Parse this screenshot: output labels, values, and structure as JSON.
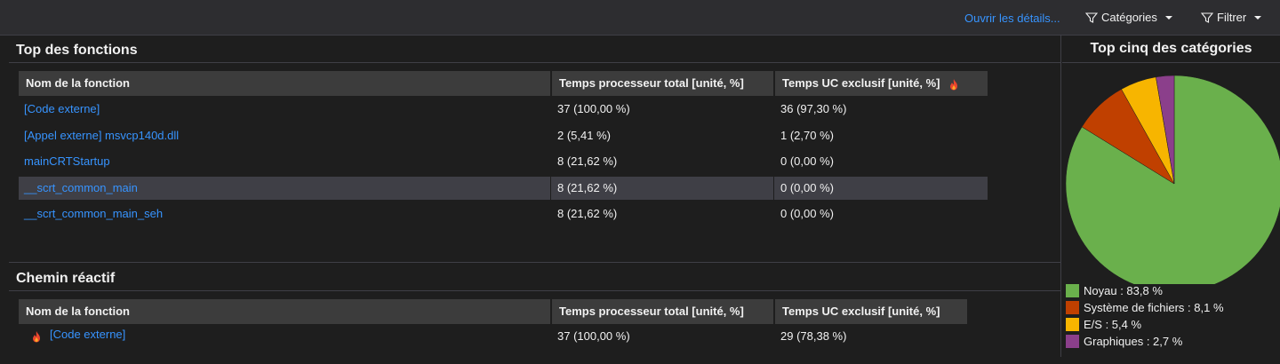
{
  "toolbar": {
    "open_details": "Ouvrir les détails...",
    "categories": "Catégories",
    "filter": "Filtrer"
  },
  "top_functions": {
    "title": "Top des fonctions",
    "headers": [
      "Nom de la fonction",
      "Temps processeur total [unité, %]",
      "Temps UC exclusif [unité, %]"
    ],
    "rows": [
      {
        "name": "[Code externe]",
        "total": "37 (100,00 %)",
        "exclusive": "36 (97,30 %)"
      },
      {
        "name": "[Appel externe] msvcp140d.dll",
        "total": "2 (5,41 %)",
        "exclusive": "1 (2,70 %)"
      },
      {
        "name": "mainCRTStartup",
        "total": "8 (21,62 %)",
        "exclusive": "0 (0,00 %)"
      },
      {
        "name": "__scrt_common_main",
        "total": "8 (21,62 %)",
        "exclusive": "0 (0,00 %)",
        "selected": true
      },
      {
        "name": "__scrt_common_main_seh",
        "total": "8 (21,62 %)",
        "exclusive": "0 (0,00 %)"
      }
    ]
  },
  "hot_path": {
    "title": "Chemin réactif",
    "headers": [
      "Nom de la fonction",
      "Temps processeur total [unité, %]",
      "Temps UC exclusif [unité, %]"
    ],
    "rows": [
      {
        "name": "[Code externe]",
        "total": "37 (100,00 %)",
        "exclusive": "29 (78,38 %)",
        "hot": true
      }
    ]
  },
  "categories_panel": {
    "title": "Top cinq des catégories",
    "legend": [
      {
        "label": "Noyau : 83,8 %",
        "color": "#6ab04c"
      },
      {
        "label": "Système de fichiers : 8,1 %",
        "color": "#c04000"
      },
      {
        "label": "E/S : 5,4 %",
        "color": "#f7b500"
      },
      {
        "label": "Graphiques : 2,7 %",
        "color": "#8b3f8b"
      }
    ]
  },
  "chart_data": {
    "type": "pie",
    "title": "Top cinq des catégories",
    "categories": [
      "Noyau",
      "Système de fichiers",
      "E/S",
      "Graphiques"
    ],
    "values": [
      83.8,
      8.1,
      5.4,
      2.7
    ],
    "colors": [
      "#6ab04c",
      "#c04000",
      "#f7b500",
      "#8b3f8b"
    ],
    "legend": "bottom-left"
  }
}
